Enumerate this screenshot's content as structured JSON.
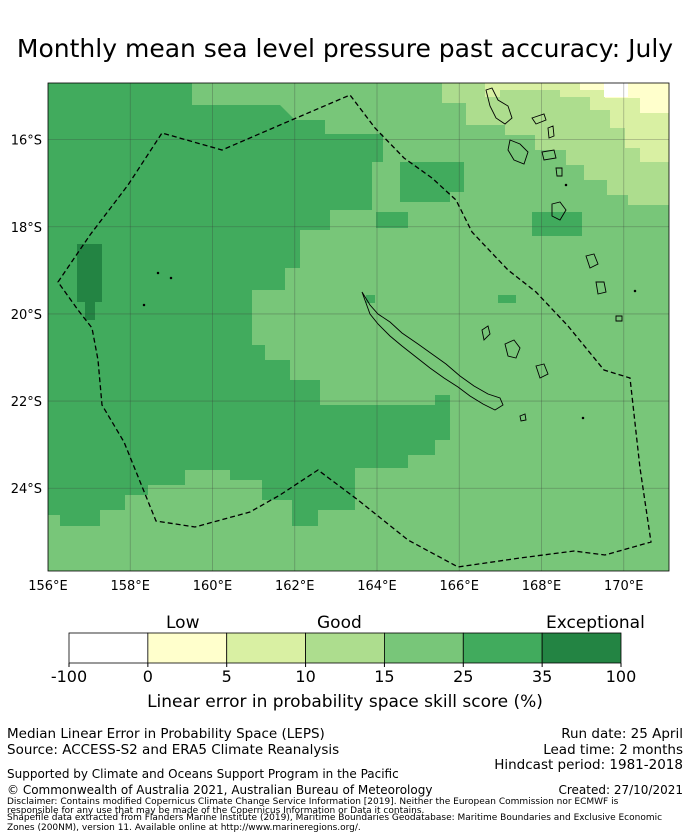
{
  "title": "Monthly mean sea level pressure past accuracy: July",
  "map": {
    "lon_ticks": [
      "156°E",
      "158°E",
      "160°E",
      "162°E",
      "164°E",
      "166°E",
      "168°E",
      "170°E"
    ],
    "lat_ticks": [
      "16°S",
      "18°S",
      "20°S",
      "22°S",
      "24°S"
    ],
    "extent": {
      "lon_min": 156.0,
      "lon_max": 171.1,
      "lat_min": -25.9,
      "lat_max": -14.7
    }
  },
  "colorbar": {
    "categories": [
      "Low",
      "Good",
      "Exceptional"
    ],
    "ticks": [
      "-100",
      "0",
      "5",
      "10",
      "15",
      "25",
      "35",
      "100"
    ],
    "colors": [
      "#ffffff",
      "#ffffcc",
      "#d9f0a3",
      "#addd8e",
      "#78c679",
      "#41ab5d",
      "#238443"
    ],
    "label": "Linear error in probability space skill score (%)"
  },
  "footer": {
    "method": "Median Linear Error in Probability Space (LEPS)",
    "source": "Source: ACCESS-S2 and ERA5 Climate Reanalysis",
    "run_date": "Run date: 25 April",
    "lead_time": "Lead time: 2 months",
    "hindcast": "Hindcast period: 1981-2018",
    "support": "Supported by Climate and Oceans Support Program in the Pacific",
    "copyright": "© Commonwealth of Australia 2021, Australian Bureau of Meteorology",
    "created": "Created: 27/10/2021",
    "disclaimer1": "Disclaimer: Contains modified Copernicus Climate Change Service Information [2019]. Neither the European Commission nor ECMWF is",
    "disclaimer2": "responsible for any use that may be made of the Copernicus Information or Data it contains.",
    "disclaimer3": "Shapefile data extracted from Flanders Marine Institute (2019), Maritime Boundaries Geodatabase: Maritime Boundaries and Exclusive Economic",
    "disclaimer4": "Zones (200NM), version 11. Available online at http://www.marineregions.org/."
  }
}
